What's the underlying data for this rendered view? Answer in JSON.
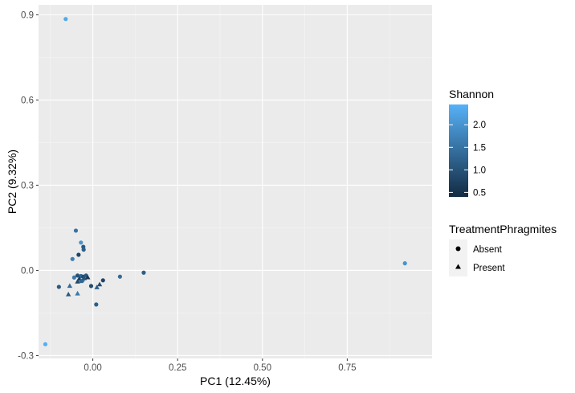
{
  "chart_data": {
    "type": "scatter",
    "xlabel": "PC1 (12.45%)",
    "ylabel": "PC2 (9.32%)",
    "xlim": [
      -0.16,
      1.0
    ],
    "ylim": [
      -0.31,
      0.935
    ],
    "x_ticks": [
      {
        "value": 0.0,
        "label": "0.00"
      },
      {
        "value": 0.25,
        "label": "0.25"
      },
      {
        "value": 0.5,
        "label": "0.50"
      },
      {
        "value": 0.75,
        "label": "0.75"
      }
    ],
    "y_ticks": [
      {
        "value": -0.3,
        "label": "-0.3"
      },
      {
        "value": 0.0,
        "label": "0.0"
      },
      {
        "value": 0.3,
        "label": "0.3"
      },
      {
        "value": 0.6,
        "label": "0.6"
      },
      {
        "value": 0.9,
        "label": "0.9"
      }
    ],
    "grid": true,
    "background": "#EBEBEB",
    "color_legend": {
      "title": "Shannon",
      "range": [
        0.4,
        2.45
      ],
      "ticks": [
        {
          "value": 0.5,
          "label": "0.5"
        },
        {
          "value": 1.0,
          "label": "1.0"
        },
        {
          "value": 1.5,
          "label": "1.5"
        },
        {
          "value": 2.0,
          "label": "2.0"
        }
      ],
      "low_color": "#132B43",
      "high_color": "#56B1F7"
    },
    "shape_legend": {
      "title": "TreatmentPhragmites",
      "items": [
        {
          "label": "Absent",
          "shape": "circle"
        },
        {
          "label": "Present",
          "shape": "triangle"
        }
      ]
    },
    "points": [
      {
        "x": -0.08,
        "y": 0.885,
        "shannon": 2.3,
        "group": "Absent"
      },
      {
        "x": -0.14,
        "y": -0.26,
        "shannon": 2.4,
        "group": "Absent"
      },
      {
        "x": 0.92,
        "y": 0.025,
        "shannon": 2.0,
        "group": "Absent"
      },
      {
        "x": -0.05,
        "y": 0.14,
        "shannon": 1.5,
        "group": "Absent"
      },
      {
        "x": -0.035,
        "y": 0.098,
        "shannon": 2.0,
        "group": "Absent"
      },
      {
        "x": -0.028,
        "y": 0.083,
        "shannon": 1.1,
        "group": "Absent"
      },
      {
        "x": -0.027,
        "y": 0.073,
        "shannon": 1.2,
        "group": "Absent"
      },
      {
        "x": -0.042,
        "y": 0.055,
        "shannon": 0.8,
        "group": "Absent"
      },
      {
        "x": -0.06,
        "y": 0.04,
        "shannon": 1.7,
        "group": "Absent"
      },
      {
        "x": 0.15,
        "y": -0.008,
        "shannon": 1.2,
        "group": "Absent"
      },
      {
        "x": 0.08,
        "y": -0.022,
        "shannon": 1.4,
        "group": "Absent"
      },
      {
        "x": -0.055,
        "y": -0.025,
        "shannon": 1.6,
        "group": "Absent"
      },
      {
        "x": -0.045,
        "y": -0.018,
        "shannon": 1.0,
        "group": "Absent"
      },
      {
        "x": -0.035,
        "y": -0.02,
        "shannon": 1.3,
        "group": "Absent"
      },
      {
        "x": -0.028,
        "y": -0.022,
        "shannon": 0.9,
        "group": "Absent"
      },
      {
        "x": -0.02,
        "y": -0.018,
        "shannon": 1.1,
        "group": "Absent"
      },
      {
        "x": -0.03,
        "y": -0.035,
        "shannon": 1.5,
        "group": "Absent"
      },
      {
        "x": 0.03,
        "y": -0.035,
        "shannon": 0.8,
        "group": "Absent"
      },
      {
        "x": -0.005,
        "y": -0.055,
        "shannon": 0.9,
        "group": "Absent"
      },
      {
        "x": -0.1,
        "y": -0.058,
        "shannon": 1.1,
        "group": "Absent"
      },
      {
        "x": 0.01,
        "y": -0.12,
        "shannon": 1.2,
        "group": "Absent"
      },
      {
        "x": -0.04,
        "y": -0.03,
        "shannon": 0.7,
        "group": "Present"
      },
      {
        "x": -0.025,
        "y": -0.028,
        "shannon": 1.0,
        "group": "Present"
      },
      {
        "x": -0.045,
        "y": -0.04,
        "shannon": 0.8,
        "group": "Present"
      },
      {
        "x": -0.035,
        "y": -0.038,
        "shannon": 1.3,
        "group": "Present"
      },
      {
        "x": -0.015,
        "y": -0.025,
        "shannon": 0.6,
        "group": "Present"
      },
      {
        "x": -0.068,
        "y": -0.055,
        "shannon": 1.4,
        "group": "Present"
      },
      {
        "x": 0.02,
        "y": -0.05,
        "shannon": 0.9,
        "group": "Present"
      },
      {
        "x": 0.012,
        "y": -0.06,
        "shannon": 1.2,
        "group": "Present"
      },
      {
        "x": -0.072,
        "y": -0.085,
        "shannon": 1.1,
        "group": "Present"
      },
      {
        "x": -0.045,
        "y": -0.082,
        "shannon": 1.6,
        "group": "Present"
      }
    ]
  }
}
